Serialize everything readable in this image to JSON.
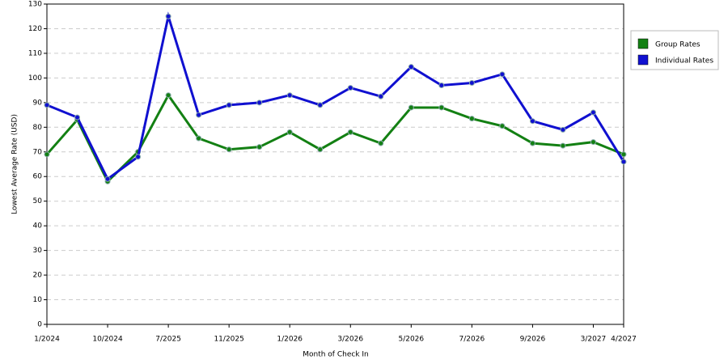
{
  "chart_data": {
    "type": "line",
    "x_label": "Month of Check In",
    "y_label": "Lowest Average Rate (USD)",
    "categories": [
      "1/2024",
      null,
      "10/2024",
      null,
      "7/2025",
      null,
      "11/2025",
      null,
      "1/2026",
      null,
      "3/2026",
      null,
      "5/2026",
      null,
      "7/2026",
      null,
      "9/2026",
      null,
      "3/2027",
      "4/2027"
    ],
    "series": [
      {
        "name": "Group Rates",
        "color": "#138013",
        "values": [
          69,
          83,
          58,
          70,
          93,
          75.5,
          71,
          72,
          78,
          71,
          78,
          73.5,
          88,
          88,
          83.5,
          80.5,
          73.5,
          72.5,
          74,
          69
        ]
      },
      {
        "name": "Individual Rates",
        "color": "#1010d0",
        "values": [
          89,
          84,
          59,
          68,
          125,
          85,
          89,
          90,
          93,
          89,
          96,
          92.5,
          104.5,
          97,
          98,
          101.5,
          82.5,
          79,
          86,
          66
        ]
      }
    ],
    "ylim": [
      0,
      130
    ],
    "yticks": [
      0,
      10,
      20,
      30,
      40,
      50,
      60,
      70,
      80,
      90,
      100,
      110,
      120,
      130
    ],
    "grid": true,
    "legend": "right"
  }
}
